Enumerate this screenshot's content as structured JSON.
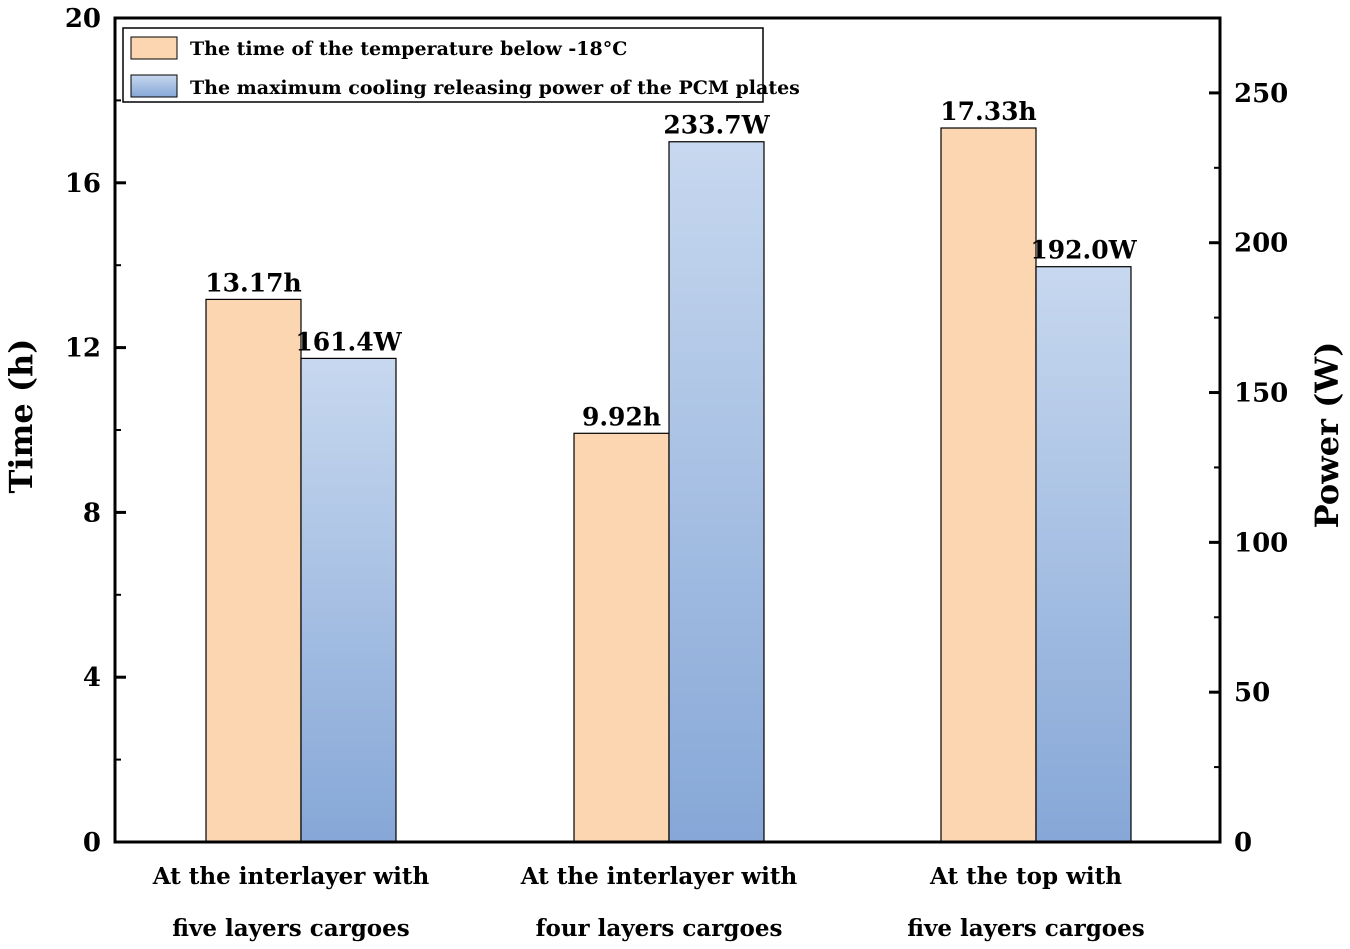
{
  "chart_data": {
    "type": "bar",
    "categories": [
      [
        "At the interlayer with",
        "five layers cargoes"
      ],
      [
        "At the interlayer with",
        "four layers cargoes"
      ],
      [
        "At the top with",
        "five layers cargoes"
      ]
    ],
    "series": [
      {
        "name": "The time of the temperature below -18°C",
        "axis": "left",
        "values": [
          13.17,
          9.92,
          17.33
        ],
        "labels": [
          "13.17h",
          "9.92h",
          "17.33h"
        ],
        "color": "#fcd6b1"
      },
      {
        "name": "The maximum cooling releasing power of the PCM plates",
        "axis": "right",
        "values": [
          161.4,
          233.7,
          192.0
        ],
        "labels": [
          "161.4W",
          "233.7W",
          "192.0W"
        ],
        "color_top": "#c7d8ef",
        "color_bottom": "#86a7d7"
      }
    ],
    "ylabel": "Time (h)",
    "ylim": [
      0,
      20
    ],
    "yticks": [
      "0",
      "4",
      "8",
      "12",
      "16",
      "20"
    ],
    "y2label": "Power (W)",
    "y2lim": [
      0,
      275
    ],
    "y2ticks": [
      "0",
      "50",
      "100",
      "150",
      "200",
      "250"
    ],
    "legend_position": "top-left"
  }
}
